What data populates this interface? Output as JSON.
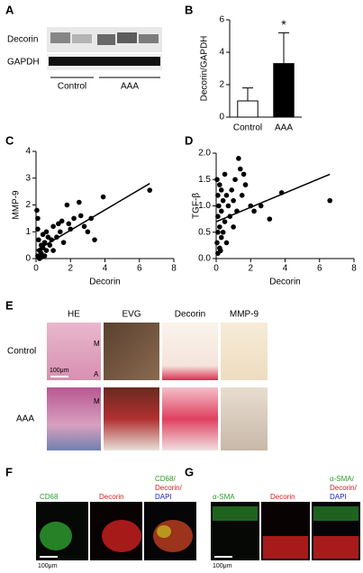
{
  "chart_data": [
    {
      "type": "bar",
      "ylabel": "Decorin/GAPDH",
      "categories": [
        "Control",
        "AAA"
      ],
      "values": [
        1.0,
        3.3
      ],
      "errors": [
        0.8,
        1.9
      ],
      "colors": [
        "#ffffff",
        "#000000"
      ],
      "ylim": [
        0,
        6
      ],
      "yticks": [
        0,
        2,
        4,
        6
      ],
      "annotations": [
        "*"
      ]
    },
    {
      "type": "scatter",
      "xlabel": "Decorin",
      "ylabel": "MMP-9",
      "color": "#000000",
      "x": [
        0.05,
        0.1,
        0.1,
        0.15,
        0.2,
        0.1,
        0.3,
        0.3,
        0.4,
        0.4,
        0.5,
        0.5,
        0.6,
        0.7,
        0.8,
        0.9,
        1.0,
        1.0,
        1.2,
        1.3,
        1.4,
        1.5,
        1.6,
        1.8,
        1.9,
        2.0,
        2.2,
        2.5,
        2.6,
        2.8,
        3.0,
        3.2,
        3.4,
        3.9,
        6.6,
        0.2,
        0.3,
        0.6
      ],
      "values": [
        1.8,
        1.5,
        1.1,
        0.7,
        0.3,
        0.1,
        0.5,
        0.2,
        0.9,
        0.4,
        0.6,
        0.1,
        1.0,
        0.8,
        0.5,
        0.7,
        1.2,
        0.3,
        0.8,
        1.3,
        1.0,
        1.4,
        0.6,
        2.0,
        1.3,
        1.1,
        1.5,
        2.1,
        1.6,
        1.2,
        1.0,
        1.5,
        0.7,
        2.3,
        2.55,
        0.0,
        0.05,
        0.3
      ],
      "fit": {
        "x": [
          0,
          6.6
        ],
        "y": [
          0.3,
          2.8
        ]
      },
      "xlim": [
        0,
        8
      ],
      "xticks": [
        0,
        2,
        4,
        6,
        8
      ],
      "ylim": [
        0,
        4
      ],
      "yticks": [
        0,
        1,
        2,
        3,
        4
      ]
    },
    {
      "type": "scatter",
      "xlabel": "Decorin",
      "ylabel": "TGF-β",
      "color": "#000000",
      "x": [
        0.05,
        0.05,
        0.1,
        0.1,
        0.1,
        0.15,
        0.2,
        0.2,
        0.2,
        0.3,
        0.3,
        0.3,
        0.4,
        0.4,
        0.5,
        0.5,
        0.6,
        0.6,
        0.7,
        0.8,
        0.9,
        1.0,
        1.0,
        1.1,
        1.2,
        1.3,
        1.4,
        1.5,
        1.6,
        1.7,
        2.0,
        2.2,
        2.6,
        3.1,
        3.8,
        6.6,
        0.1,
        0.25
      ],
      "values": [
        1.5,
        0.3,
        1.2,
        0.8,
        0.1,
        1.0,
        1.4,
        0.6,
        0.2,
        1.3,
        0.9,
        0.4,
        1.1,
        0.5,
        1.6,
        0.7,
        1.2,
        0.3,
        1.0,
        0.8,
        1.3,
        1.1,
        0.6,
        1.5,
        0.9,
        1.9,
        1.7,
        1.2,
        1.6,
        1.4,
        1.0,
        0.9,
        1.0,
        0.75,
        1.25,
        1.1,
        0.5,
        0.15
      ],
      "fit": {
        "x": [
          0,
          6.6
        ],
        "y": [
          0.7,
          1.6
        ]
      },
      "xlim": [
        0,
        8
      ],
      "xticks": [
        0,
        2,
        4,
        6,
        8
      ],
      "ylim": [
        0,
        2
      ],
      "yticks": [
        {
          "value": 0,
          "label": "0.0"
        },
        0.5,
        {
          "value": 1,
          "label": "1.0"
        },
        1.5,
        {
          "value": 2,
          "label": "2.0"
        }
      ]
    }
  ],
  "panels": [
    "A",
    "B",
    "C",
    "D",
    "E",
    "F",
    "G"
  ],
  "blot": {
    "bands": [
      "Decorin",
      "GAPDH"
    ],
    "groups": [
      "Control",
      "AAA"
    ]
  },
  "histology": {
    "columns": [
      "HE",
      "EVG",
      "Decorin",
      "MMP-9"
    ],
    "rows": [
      "Control",
      "AAA"
    ],
    "layers": [
      "M",
      "A",
      "M"
    ],
    "scale": "100μm"
  },
  "fluorescence_f": {
    "channels": [
      "CD68",
      "Decorin"
    ],
    "merge": [
      "CD68/",
      "Decorin/",
      "DAPI"
    ],
    "scale": "100μm"
  },
  "fluorescence_g": {
    "channels": [
      "α-SMA",
      "Decorin"
    ],
    "merge": [
      "α-SMA/",
      "Decorin/",
      "DAPI"
    ],
    "scale": "100μm"
  }
}
